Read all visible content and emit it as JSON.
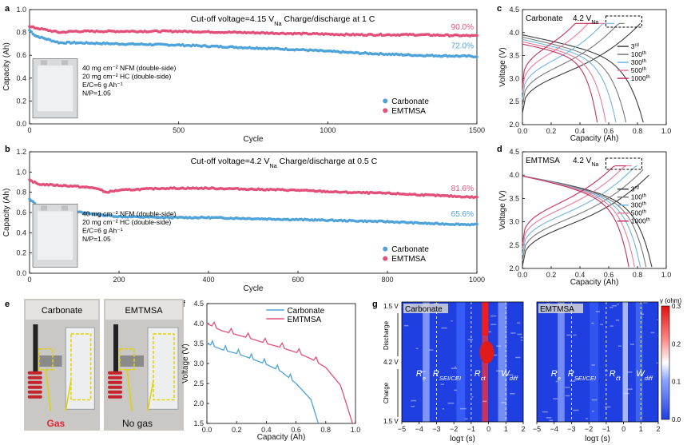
{
  "colors": {
    "carbonate": "#4fa3d9",
    "emtmsa": "#e2507a",
    "cyc1": "#3c3c3c",
    "cyc2": "#7a7a7a",
    "cyc3": "#6fb6e0",
    "cyc4": "#e87a9a",
    "cyc5": "#c3315d"
  },
  "chart_data": [
    {
      "panel": "a",
      "type": "scatter",
      "annotation": "Cut-off voltage=4.15 V",
      "annotation_sub": "Na",
      "annotation_tail": "  Charge/discharge at 1 C",
      "xlabel": "Cycle",
      "ylabel": "Capacity (Ah)",
      "xlim": [
        0,
        1500
      ],
      "ylim": [
        0,
        1.0
      ],
      "xticks": [
        "0",
        "500",
        "1000",
        "1500"
      ],
      "yticks": [
        "0.0",
        "0.2",
        "0.4",
        "0.6",
        "0.8",
        "1.0"
      ],
      "series": [
        {
          "name": "Carbonate",
          "end_label": "72.0%",
          "x": [
            0,
            20,
            60,
            100,
            150,
            300,
            500,
            700,
            900,
            1100,
            1300,
            1500
          ],
          "values": [
            0.82,
            0.77,
            0.74,
            0.71,
            0.71,
            0.7,
            0.69,
            0.67,
            0.65,
            0.62,
            0.6,
            0.59
          ]
        },
        {
          "name": "EMTMSA",
          "end_label": "90.0%",
          "x": [
            0,
            20,
            60,
            100,
            150,
            300,
            500,
            700,
            900,
            1100,
            1300,
            1500
          ],
          "values": [
            0.85,
            0.84,
            0.82,
            0.8,
            0.81,
            0.81,
            0.81,
            0.8,
            0.79,
            0.78,
            0.78,
            0.77
          ]
        }
      ],
      "inset_text": [
        "40 mg cm⁻² NFM (double-side)",
        "20 mg cm⁻² HC (double-side)",
        "E/C=6 g Ah⁻¹",
        "N/P=1.05"
      ]
    },
    {
      "panel": "b",
      "type": "scatter",
      "annotation": "Cut-off voltage=4.2 V",
      "annotation_sub": "Na",
      "annotation_tail": "  Charge/discharge at 0.5 C",
      "xlabel": "Cycle",
      "ylabel": "Capacity (Ah)",
      "xlim": [
        0,
        1000
      ],
      "ylim": [
        0,
        1.2
      ],
      "xticks": [
        "0",
        "200",
        "400",
        "600",
        "800",
        "1000"
      ],
      "yticks": [
        "0.0",
        "0.2",
        "0.4",
        "0.6",
        "0.8",
        "1.0",
        "1.2"
      ],
      "series": [
        {
          "name": "Carbonate",
          "end_label": "65.6%",
          "x": [
            0,
            20,
            60,
            100,
            150,
            200,
            300,
            400,
            500,
            600,
            700,
            800,
            900,
            1000
          ],
          "values": [
            0.73,
            0.66,
            0.63,
            0.61,
            0.58,
            0.56,
            0.55,
            0.55,
            0.54,
            0.53,
            0.52,
            0.51,
            0.49,
            0.48
          ]
        },
        {
          "name": "EMTMSA",
          "end_label": "81.6%",
          "x": [
            0,
            20,
            60,
            100,
            150,
            170,
            200,
            300,
            400,
            500,
            600,
            700,
            800,
            900,
            1000
          ],
          "values": [
            0.92,
            0.88,
            0.87,
            0.86,
            0.84,
            0.8,
            0.82,
            0.84,
            0.84,
            0.83,
            0.82,
            0.8,
            0.79,
            0.77,
            0.75
          ]
        }
      ],
      "inset_text": [
        "40 mg cm⁻² NFM (double-side)",
        "20 mg cm⁻² HC (double-side)",
        "E/C=6 g Ah⁻¹",
        "N/P=1.05"
      ]
    },
    {
      "panel": "c",
      "type": "line",
      "title": "Carbonate",
      "title_volt": "4.2 V",
      "title_sub": "Na",
      "xlabel": "Capacity (Ah)",
      "ylabel": "Voltage (V)",
      "xlim": [
        0,
        1.0
      ],
      "ylim": [
        2.0,
        4.5
      ],
      "xticks": [
        "0.0",
        "0.2",
        "0.4",
        "0.6",
        "0.8",
        "1.0"
      ],
      "yticks": [
        "2.0",
        "2.5",
        "3.0",
        "3.5",
        "4.0",
        "4.5"
      ],
      "legend": [
        {
          "base": "3",
          "sup": "rd"
        },
        {
          "base": "100",
          "sup": "th"
        },
        {
          "base": "300",
          "sup": "th"
        },
        {
          "base": "500",
          "sup": "th"
        },
        {
          "base": "1000",
          "sup": "th"
        }
      ],
      "discharge_end": [
        0.84,
        0.72,
        0.65,
        0.58,
        0.52
      ],
      "charge_end": [
        0.82,
        0.71,
        0.64,
        0.57,
        0.51
      ]
    },
    {
      "panel": "d",
      "type": "line",
      "title": "EMTMSA",
      "title_volt": "4.2 V",
      "title_sub": "Na",
      "xlabel": "Capacity (Ah)",
      "ylabel": "Voltage (V)",
      "xlim": [
        0,
        1.0
      ],
      "ylim": [
        2.0,
        4.5
      ],
      "xticks": [
        "0.0",
        "0.2",
        "0.4",
        "0.6",
        "0.8",
        "1.0"
      ],
      "yticks": [
        "2.0",
        "2.5",
        "3.0",
        "3.5",
        "4.0",
        "4.5"
      ],
      "legend": [
        {
          "base": "3",
          "sup": "rd"
        },
        {
          "base": "100",
          "sup": "th"
        },
        {
          "base": "300",
          "sup": "th"
        },
        {
          "base": "500",
          "sup": "th"
        },
        {
          "base": "1000",
          "sup": "th"
        }
      ],
      "discharge_end": [
        0.9,
        0.86,
        0.82,
        0.78,
        0.74
      ],
      "charge_end": [
        0.88,
        0.84,
        0.8,
        0.76,
        0.72
      ]
    },
    {
      "panel": "f",
      "type": "line",
      "xlabel": "Capacity (Ah)",
      "ylabel": "Voltage (V)",
      "xlim": [
        0,
        1.0
      ],
      "ylim": [
        1.5,
        4.5
      ],
      "xticks": [
        "0.0",
        "0.2",
        "0.4",
        "0.6",
        "0.8",
        "1.0"
      ],
      "yticks": [
        "1.5",
        "2.0",
        "2.5",
        "3.0",
        "3.5",
        "4.0",
        "4.5"
      ],
      "series": [
        {
          "name": "Carbonate",
          "x": [
            0,
            0.1,
            0.2,
            0.3,
            0.4,
            0.5,
            0.6,
            0.7,
            0.75
          ],
          "values": [
            3.5,
            3.35,
            3.25,
            3.12,
            2.98,
            2.8,
            2.5,
            2.1,
            1.5
          ]
        },
        {
          "name": "EMTMSA",
          "x": [
            0,
            0.1,
            0.2,
            0.3,
            0.4,
            0.5,
            0.6,
            0.7,
            0.8,
            0.9,
            0.98
          ],
          "values": [
            4.0,
            3.82,
            3.72,
            3.62,
            3.5,
            3.4,
            3.28,
            3.12,
            2.9,
            2.45,
            1.5
          ]
        }
      ]
    },
    {
      "panel": "g",
      "type": "heatmap",
      "xlabel": "logτ (s)",
      "xticks": [
        "−5",
        "−4",
        "−3",
        "−2",
        "−1",
        "0",
        "1",
        "2"
      ],
      "xlim": [
        -5,
        2
      ],
      "y_top": "1.5 V",
      "y_mid": "4.2 V",
      "y_bot": "1.5 V",
      "y_discharge": "Discharge",
      "y_charge": "Charge",
      "colorbar_label": "γ (ohm)",
      "colorbar_ticks": [
        "0.0",
        "0.1",
        "0.2",
        "0.3"
      ],
      "maps": [
        {
          "title": "Carbonate",
          "labels": [
            {
              "base": "R",
              "sub": "e"
            },
            {
              "base": "R",
              "sub": "SEI/CEI"
            },
            {
              "base": "R",
              "sub": "ct"
            },
            {
              "base": "W",
              "sub": "diff"
            }
          ]
        },
        {
          "title": "EMTMSA",
          "labels": [
            {
              "base": "R",
              "sub": "e"
            },
            {
              "base": "R",
              "sub": "SEI/CEI"
            },
            {
              "base": "R",
              "sub": "ct"
            },
            {
              "base": "W",
              "sub": "diff"
            }
          ]
        }
      ]
    }
  ],
  "panel_e": {
    "left_title": "Carbonate",
    "right_title": "EMTMSA",
    "left_caption": "Gas",
    "right_caption": "No gas"
  },
  "panel_letters": [
    "a",
    "b",
    "c",
    "d",
    "e",
    "f",
    "g"
  ]
}
